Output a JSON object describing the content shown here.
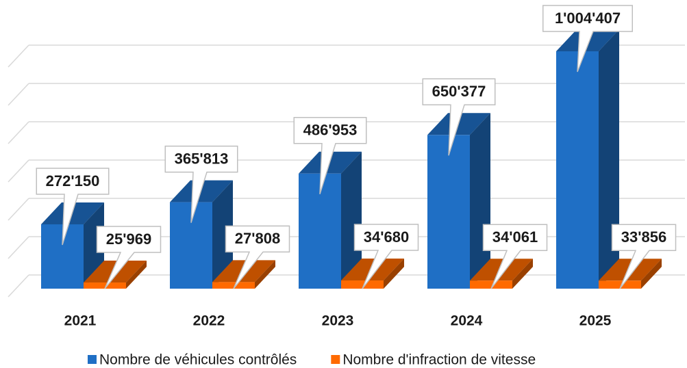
{
  "chart_data": {
    "type": "bar3d",
    "categories": [
      "2021",
      "2022",
      "2023",
      "2024",
      "2025"
    ],
    "series": [
      {
        "name": "Nombre de véhicules contrôlés",
        "color": "#1f6fc5",
        "values": [
          272150,
          365813,
          486953,
          650377,
          1004407
        ],
        "value_labels": [
          "272'150",
          "365'813",
          "486'953",
          "650'377",
          "1'004'407"
        ]
      },
      {
        "name": "Nombre d'infraction de vitesse",
        "color": "#ff6a00",
        "values": [
          25969,
          27808,
          34680,
          34061,
          33856
        ],
        "value_labels": [
          "25'969",
          "27'808",
          "34'680",
          "34'061",
          "33'856"
        ]
      }
    ],
    "grid": true,
    "legend": "bottom"
  }
}
